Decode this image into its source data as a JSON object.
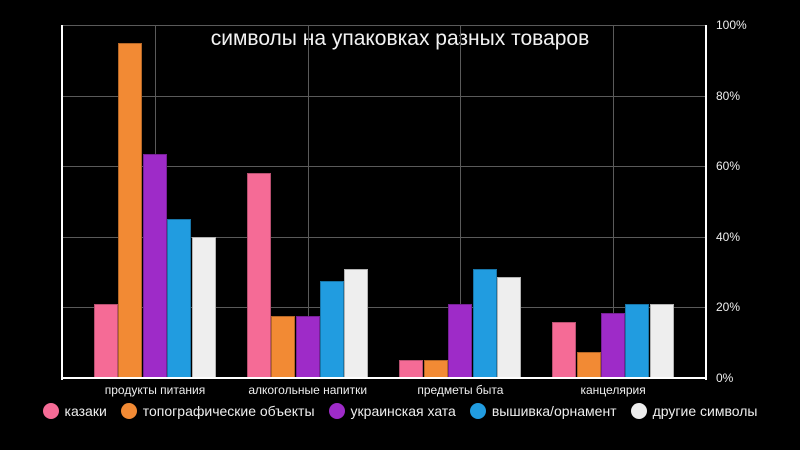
{
  "chart_data": {
    "type": "bar",
    "title": "символы на упаковках разных товаров",
    "xlabel": "",
    "ylabel": "",
    "ylim": [
      0,
      100
    ],
    "y_axis_position": "right",
    "y_ticks": [
      "0%",
      "20%",
      "40%",
      "60%",
      "80%",
      "100%"
    ],
    "grid": true,
    "legend_position": "bottom",
    "categories": [
      "продукты питания",
      "алкогольные напитки",
      "предметы быта",
      "канцелярия"
    ],
    "series": [
      {
        "name": "казаки",
        "color": "#f56b96",
        "values": [
          21,
          58,
          5,
          16
        ]
      },
      {
        "name": "топографические объекты",
        "color": "#f28a34",
        "values": [
          95,
          17.5,
          5,
          7.5
        ]
      },
      {
        "name": "украинская хата",
        "color": "#9e2bc8",
        "values": [
          63.5,
          17.5,
          21,
          18.5
        ]
      },
      {
        "name": "вышивка/орнамент",
        "color": "#219ce0",
        "values": [
          45,
          27.5,
          31,
          21
        ]
      },
      {
        "name": "другие символы",
        "color": "#eeeeee",
        "values": [
          40,
          31,
          28.5,
          21
        ]
      }
    ]
  }
}
